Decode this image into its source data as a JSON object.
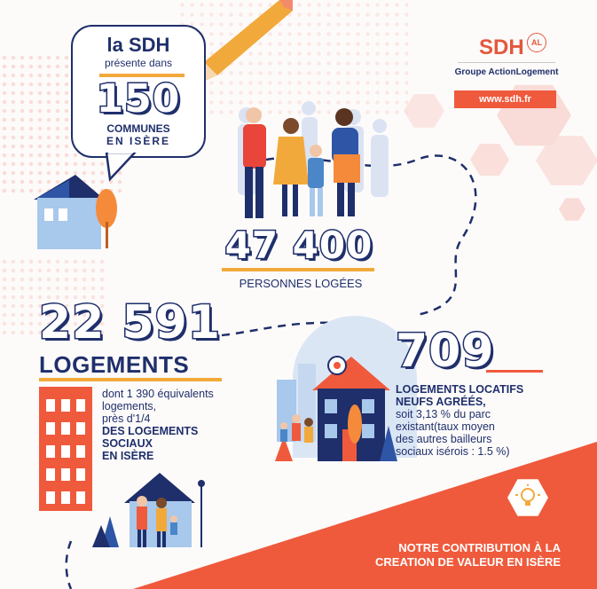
{
  "bubble": {
    "line1": "la SDH",
    "line2": "présente dans",
    "number": "150",
    "line3": "COMMUNES",
    "line4": "EN ISÈRE"
  },
  "logo": {
    "brand": "SDH",
    "badge": "AL",
    "group": "Groupe ActionLogement",
    "url": "www.sdh.fr"
  },
  "people_stat": {
    "number": "47 400",
    "label": "PERSONNES LOGÉES"
  },
  "housing_stat": {
    "number": "22 591",
    "label": "LOGEMENTS",
    "line1": "dont 1 390 équivalents",
    "line2": "logements,",
    "line3": "près d'1/4",
    "line4": "DES LOGEMENTS",
    "line5": "SOCIAUX",
    "line6": "EN ISÈRE"
  },
  "new_stat": {
    "number": "709",
    "line1": "LOGEMENTS LOCATIFS",
    "line2": "NEUFS AGRÉÉS,",
    "line3": "soit 3,13 % du parc",
    "line4": "existant(taux moyen",
    "line5": "des autres bailleurs",
    "line6": "sociaux isérois : 1.5 %)"
  },
  "footer": {
    "line1": "NOTRE CONTRIBUTION À LA",
    "line2": "CREATION DE VALEUR EN ISÈRE"
  },
  "colors": {
    "navy": "#1f2f6b",
    "orange": "#f2a93b",
    "coral": "#ef5a3c",
    "blue": "#4a86c8"
  }
}
